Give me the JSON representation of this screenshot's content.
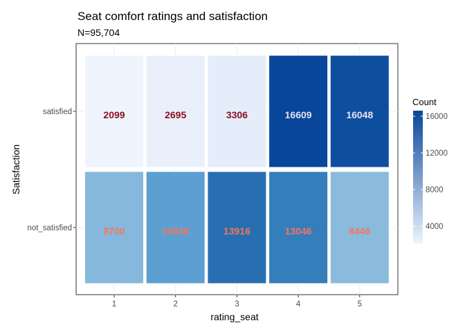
{
  "chart_data": {
    "type": "heatmap",
    "title": "Seat comfort ratings and satisfaction",
    "subtitle": "N=95,704",
    "xlabel": "rating_seat",
    "ylabel": "Satisfaction",
    "x_categories": [
      "1",
      "2",
      "3",
      "4",
      "5"
    ],
    "y_categories": [
      "not_satisfied",
      "satisfied"
    ],
    "cells": [
      {
        "x": "1",
        "y": "satisfied",
        "value": 2099
      },
      {
        "x": "2",
        "y": "satisfied",
        "value": 2695
      },
      {
        "x": "3",
        "y": "satisfied",
        "value": 3306
      },
      {
        "x": "4",
        "y": "satisfied",
        "value": 16609
      },
      {
        "x": "5",
        "y": "satisfied",
        "value": 16048
      },
      {
        "x": "1",
        "y": "not_satisfied",
        "value": 8700
      },
      {
        "x": "2",
        "y": "not_satisfied",
        "value": 10839
      },
      {
        "x": "3",
        "y": "not_satisfied",
        "value": 13916
      },
      {
        "x": "4",
        "y": "not_satisfied",
        "value": 13046
      },
      {
        "x": "5",
        "y": "not_satisfied",
        "value": 8446
      }
    ],
    "legend": {
      "title": "Count",
      "ticks": [
        4000,
        8000,
        12000,
        16000
      ],
      "range": [
        2099,
        16609
      ],
      "low_color": "#eef4fd",
      "high_color": "#08469a",
      "placement": "right"
    },
    "label_colors": {
      "satisfied_low": "#8b0d1f",
      "satisfied_high": "#e8e3ec",
      "not_satisfied": "#f4765c"
    },
    "grid": true
  }
}
